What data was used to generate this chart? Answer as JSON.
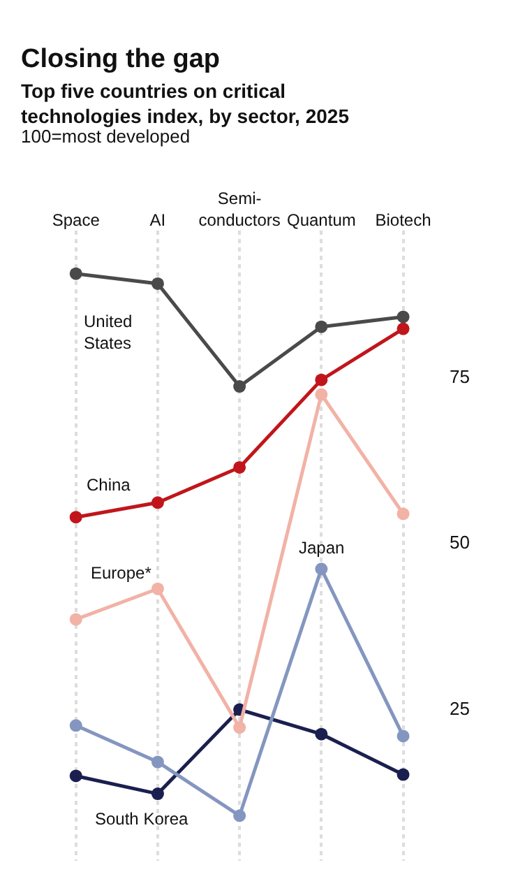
{
  "chart_data": {
    "type": "line",
    "title": "Closing the gap",
    "subtitle": "Top five countries on critical technologies index, by sector, 2025",
    "annotations": [
      "100=most developed"
    ],
    "categories": [
      "Space",
      "AI",
      "Semi-\nconductors",
      "Quantum",
      "Biotech"
    ],
    "series": [
      {
        "name": "United States",
        "color": "#4a4a4a",
        "values": [
          90.5,
          89,
          73.5,
          82.5,
          84
        ]
      },
      {
        "name": "China",
        "color": "#c0161b",
        "values": [
          53.8,
          56,
          61.3,
          74.5,
          82.2
        ]
      },
      {
        "name": "Europe*",
        "color": "#f2b2a6",
        "values": [
          38.4,
          43,
          22.1,
          72.3,
          54.3
        ]
      },
      {
        "name": "Japan",
        "color": "#8496c0",
        "values": [
          22.4,
          16.9,
          8.8,
          46,
          20.8
        ]
      },
      {
        "name": "South Korea",
        "color": "#1b1f4f",
        "values": [
          14.8,
          12.1,
          24.8,
          21.1,
          15
        ]
      }
    ],
    "ylim": [
      2,
      97
    ],
    "yticks": [
      25,
      50,
      75
    ],
    "grid": "x",
    "marker": "circle",
    "line_style": "solid",
    "legend": false
  }
}
